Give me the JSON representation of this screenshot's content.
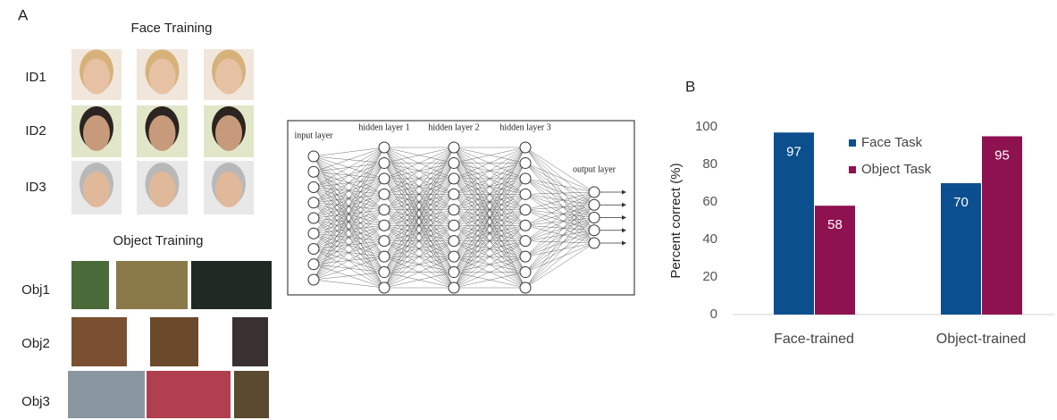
{
  "panel_a": {
    "label": "A",
    "face_title": "Face Training",
    "face_rows": [
      "ID1",
      "ID2",
      "ID3"
    ],
    "object_title": "Object Training",
    "object_rows": [
      "Obj1",
      "Obj2",
      "Obj3"
    ],
    "network_labels": [
      "input layer",
      "hidden layer 1",
      "hidden layer 2",
      "hidden layer 3",
      "output layer"
    ]
  },
  "chart_data": {
    "type": "bar",
    "panel_label": "B",
    "ylabel": "Percent correct (%)",
    "categories": [
      "Face-trained",
      "Object-trained"
    ],
    "series": [
      {
        "name": "Face Task",
        "color": "#0b4f8e",
        "values": [
          97,
          70
        ]
      },
      {
        "name": "Object Task",
        "color": "#8e1150",
        "values": [
          58,
          95
        ]
      }
    ],
    "ylim": [
      0,
      100
    ],
    "yticks": [
      0,
      20,
      40,
      60,
      80,
      100
    ],
    "legend": "upper center",
    "data_labels": true
  }
}
